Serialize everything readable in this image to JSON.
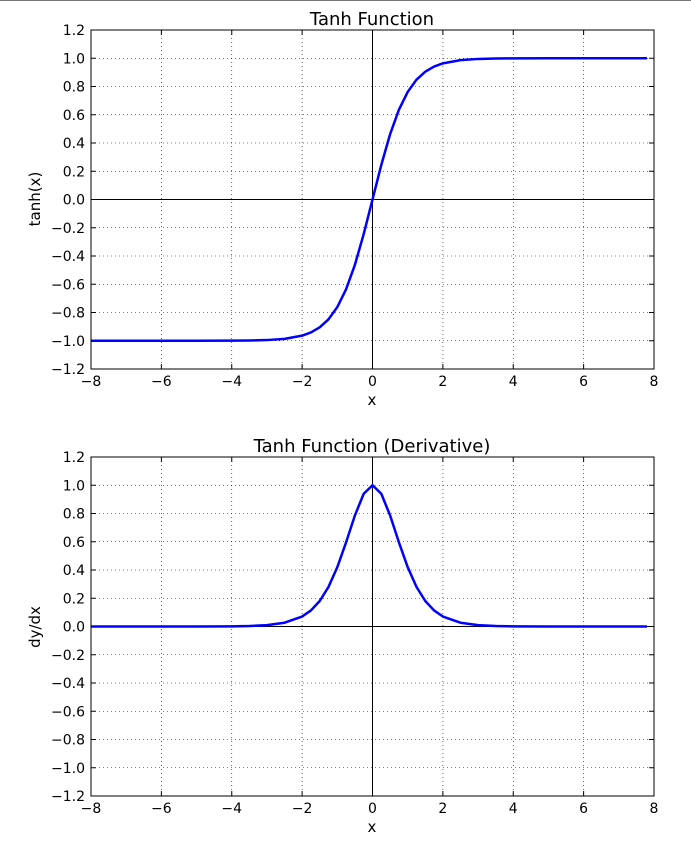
{
  "charts": [
    {
      "id": "top",
      "title": "Tanh Function",
      "xlabel": "x",
      "ylabel": "tanh(x)"
    },
    {
      "id": "bottom",
      "title": "Tanh Function (Derivative)",
      "xlabel": "x",
      "ylabel": "dy/dx"
    }
  ],
  "chart_data": [
    {
      "type": "line",
      "title": "Tanh Function",
      "xlabel": "x",
      "ylabel": "tanh(x)",
      "xlim": [
        -8,
        8
      ],
      "ylim": [
        -1.2,
        1.2
      ],
      "xticks": [
        -8,
        -6,
        -4,
        -2,
        0,
        2,
        4,
        6,
        8
      ],
      "xtick_labels": [
        "−8",
        "−6",
        "−4",
        "−2",
        "0",
        "2",
        "4",
        "6",
        "8"
      ],
      "yticks": [
        1.2,
        1.0,
        0.8,
        0.6,
        0.4,
        0.2,
        0.0,
        -0.2,
        -0.4,
        -0.6,
        -0.8,
        -1.0,
        -1.2
      ],
      "ytick_labels": [
        "1.2",
        "1.0",
        "0.8",
        "0.6",
        "0.4",
        "0.2",
        "0.0",
        "−0.2",
        "−0.4",
        "−0.6",
        "−0.8",
        "−1.0",
        "−1.2"
      ],
      "grid": true,
      "grid_style": "dotted",
      "zero_axes": true,
      "series": [
        {
          "color": "#0000ff",
          "x": [
            -8,
            -7,
            -6,
            -5,
            -4,
            -3.5,
            -3,
            -2.5,
            -2,
            -1.75,
            -1.5,
            -1.25,
            -1,
            -0.75,
            -0.5,
            -0.25,
            0,
            0.25,
            0.5,
            0.75,
            1,
            1.25,
            1.5,
            1.75,
            2,
            2.5,
            3,
            3.5,
            4,
            5,
            6,
            7,
            7.8
          ],
          "y": [
            -1.0,
            -1.0,
            -1.0,
            -0.9999,
            -0.9993,
            -0.9982,
            -0.9951,
            -0.9866,
            -0.964,
            -0.9414,
            -0.9051,
            -0.8483,
            -0.7616,
            -0.6351,
            -0.4621,
            -0.2449,
            0.0,
            0.2449,
            0.4621,
            0.6351,
            0.7616,
            0.8483,
            0.9051,
            0.9414,
            0.964,
            0.9866,
            0.9951,
            0.9982,
            0.9993,
            0.9999,
            1.0,
            1.0,
            1.0
          ]
        }
      ]
    },
    {
      "type": "line",
      "title": "Tanh Function (Derivative)",
      "xlabel": "x",
      "ylabel": "dy/dx",
      "xlim": [
        -8,
        8
      ],
      "ylim": [
        -1.2,
        1.2
      ],
      "xticks": [
        -8,
        -6,
        -4,
        -2,
        0,
        2,
        4,
        6,
        8
      ],
      "xtick_labels": [
        "−8",
        "−6",
        "−4",
        "−2",
        "0",
        "2",
        "4",
        "6",
        "8"
      ],
      "yticks": [
        1.2,
        1.0,
        0.8,
        0.6,
        0.4,
        0.2,
        0.0,
        -0.2,
        -0.4,
        -0.6,
        -0.8,
        -1.0,
        -1.2
      ],
      "ytick_labels": [
        "1.2",
        "1.0",
        "0.8",
        "0.6",
        "0.4",
        "0.2",
        "0.0",
        "−0.2",
        "−0.4",
        "−0.6",
        "−0.8",
        "−1.0",
        "−1.2"
      ],
      "grid": true,
      "grid_style": "dotted",
      "zero_axes": true,
      "series": [
        {
          "color": "#0000ff",
          "x": [
            -8,
            -7,
            -6,
            -5,
            -4,
            -3.5,
            -3,
            -2.5,
            -2,
            -1.75,
            -1.5,
            -1.25,
            -1,
            -0.75,
            -0.5,
            -0.25,
            0,
            0.25,
            0.5,
            0.75,
            1,
            1.25,
            1.5,
            1.75,
            2,
            2.5,
            3,
            3.5,
            4,
            5,
            6,
            7,
            7.8
          ],
          "y": [
            0.0,
            0.0,
            0.0,
            0.0002,
            0.0013,
            0.0036,
            0.0099,
            0.0266,
            0.0707,
            0.1138,
            0.1807,
            0.2804,
            0.42,
            0.5966,
            0.7864,
            0.94,
            1.0,
            0.94,
            0.7864,
            0.5966,
            0.42,
            0.2804,
            0.1807,
            0.1138,
            0.0707,
            0.0266,
            0.0099,
            0.0036,
            0.0013,
            0.0002,
            0.0,
            0.0,
            0.0
          ]
        }
      ]
    }
  ]
}
